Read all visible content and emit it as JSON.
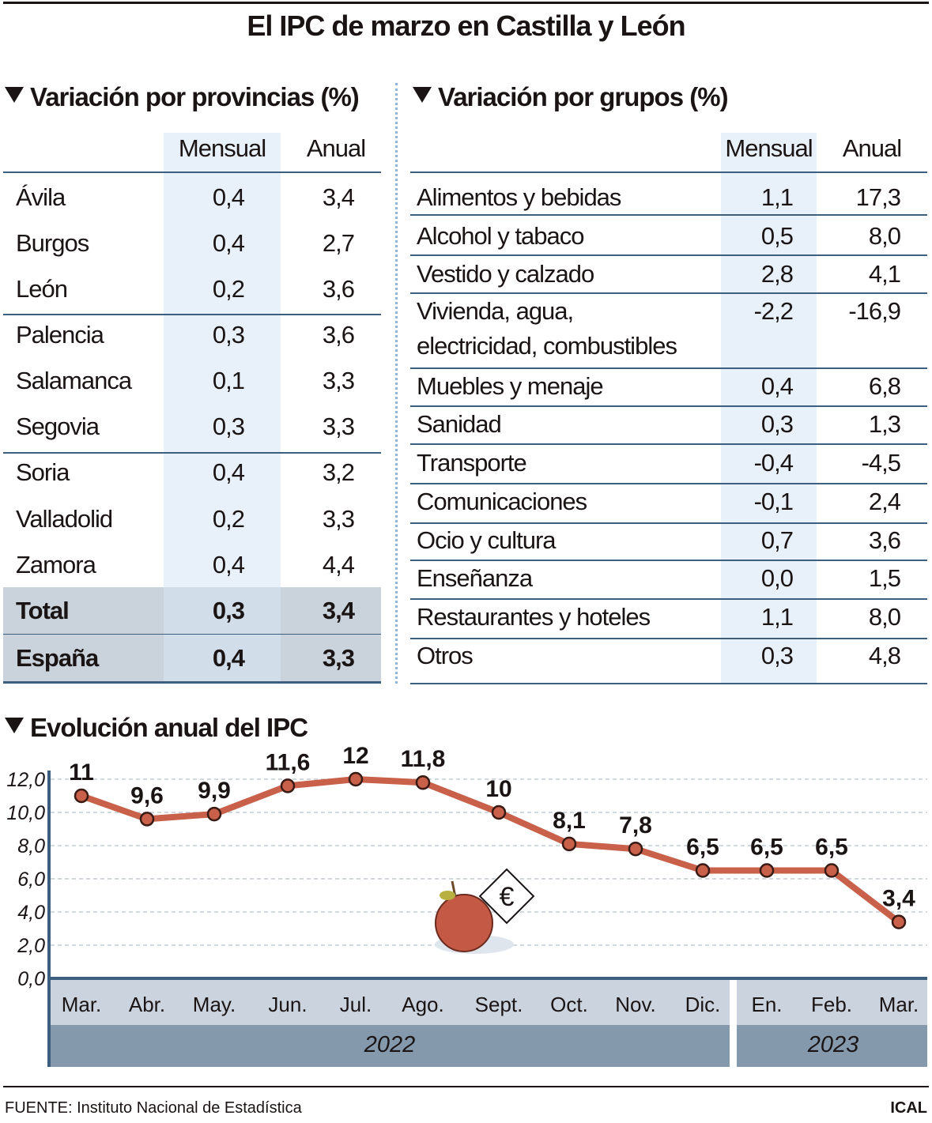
{
  "title": "El IPC de marzo en Castilla y León",
  "provincias": {
    "heading": "Variación por provincias (%)",
    "headers": [
      "Mensual",
      "Anual"
    ],
    "rows": [
      {
        "name": "Ávila",
        "mensual": "0,4",
        "anual": "3,4"
      },
      {
        "name": "Burgos",
        "mensual": "0,4",
        "anual": "2,7"
      },
      {
        "name": "León",
        "mensual": "0,2",
        "anual": "3,6"
      },
      {
        "name": "Palencia",
        "mensual": "0,3",
        "anual": "3,6"
      },
      {
        "name": "Salamanca",
        "mensual": "0,1",
        "anual": "3,3"
      },
      {
        "name": "Segovia",
        "mensual": "0,3",
        "anual": "3,3"
      },
      {
        "name": "Soria",
        "mensual": "0,4",
        "anual": "3,2"
      },
      {
        "name": "Valladolid",
        "mensual": "0,2",
        "anual": "3,3"
      },
      {
        "name": "Zamora",
        "mensual": "0,4",
        "anual": "4,4"
      }
    ],
    "totals": [
      {
        "name": "Total",
        "mensual": "0,3",
        "anual": "3,4"
      },
      {
        "name": "España",
        "mensual": "0,4",
        "anual": "3,3"
      }
    ]
  },
  "grupos": {
    "heading": "Variación por grupos (%)",
    "headers": [
      "Mensual",
      "Anual"
    ],
    "rows": [
      {
        "name": "Alimentos y bebidas",
        "mensual": "1,1",
        "anual": "17,3"
      },
      {
        "name": "Alcohol y tabaco",
        "mensual": "0,5",
        "anual": "8,0"
      },
      {
        "name": "Vestido y calzado",
        "mensual": "2,8",
        "anual": "4,1"
      },
      {
        "name": "Vivienda, agua,",
        "name2": "electricidad, combustibles",
        "mensual": "-2,2",
        "anual": "-16,9"
      },
      {
        "name": "Muebles y menaje",
        "mensual": "0,4",
        "anual": "6,8"
      },
      {
        "name": "Sanidad",
        "mensual": "0,3",
        "anual": "1,3"
      },
      {
        "name": "Transporte",
        "mensual": "-0,4",
        "anual": "-4,5"
      },
      {
        "name": "Comunicaciones",
        "mensual": "-0,1",
        "anual": "2,4"
      },
      {
        "name": "Ocio y cultura",
        "mensual": "0,7",
        "anual": "3,6"
      },
      {
        "name": "Enseñanza",
        "mensual": "0,0",
        "anual": "1,5"
      },
      {
        "name": "Restaurantes y hoteles",
        "mensual": "1,1",
        "anual": "8,0"
      },
      {
        "name": "Otros",
        "mensual": "0,3",
        "anual": "4,8"
      }
    ]
  },
  "chart_data": {
    "type": "line",
    "title": "Evolución anual del IPC",
    "categories": [
      "Mar.",
      "Abr.",
      "May.",
      "Jun.",
      "Jul.",
      "Ago.",
      "Sept.",
      "Oct.",
      "Nov.",
      "Dic.",
      "En.",
      "Feb.",
      "Mar."
    ],
    "years": [
      {
        "label": "2022",
        "count": 10
      },
      {
        "label": "2023",
        "count": 3
      }
    ],
    "values": [
      11,
      9.6,
      9.9,
      11.6,
      12,
      11.8,
      10,
      8.1,
      7.8,
      6.5,
      6.5,
      6.5,
      3.4
    ],
    "data_labels": [
      "11",
      "9,6",
      "9,9",
      "11,6",
      "12",
      "11,8",
      "10",
      "8,1",
      "7,8",
      "6,5",
      "6,5",
      "6,5",
      "3,4"
    ],
    "yticks": [
      "0,0",
      "2,0",
      "4,0",
      "6,0",
      "8,0",
      "10,0",
      "12,0"
    ],
    "ylim": [
      0,
      12
    ],
    "grid": true,
    "line_color": "#c8604a"
  },
  "footer": {
    "source": "FUENTE: Instituto Nacional de Estadística",
    "brand": "ICAL"
  },
  "colors": {
    "band": "#e8f0f9",
    "total_bg": "#cad3dc",
    "rule": "#3c5f80",
    "month_band": "#cbd4de",
    "year_band": "#8599ad"
  }
}
